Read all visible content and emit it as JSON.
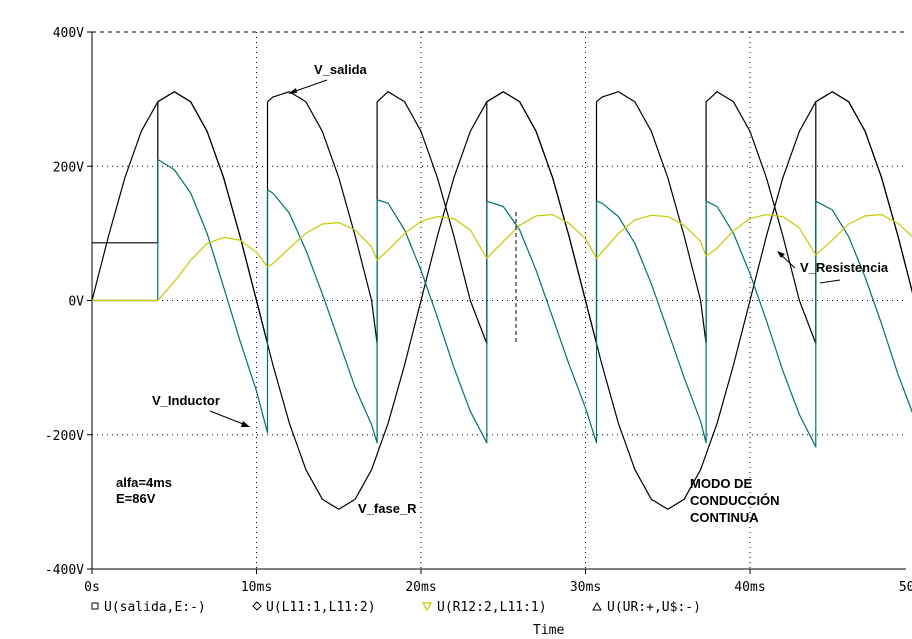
{
  "chart_data": {
    "type": "line",
    "xlabel": "Time",
    "ylabel": "",
    "xlim": [
      0,
      50
    ],
    "ylim": [
      -400,
      400
    ],
    "grid": true,
    "x_ticks": [
      "0s",
      "10ms",
      "20ms",
      "30ms",
      "40ms",
      "50ms"
    ],
    "y_ticks": [
      "400V",
      "200V",
      "0V",
      "-200V",
      "-400V"
    ],
    "legend": {
      "placement": "bottom",
      "entries": [
        {
          "marker": "square",
          "label": "U(salida,E:-)",
          "color": "#000000"
        },
        {
          "marker": "diamond",
          "label": "U(L11:1,L11:2)",
          "color": "#000000"
        },
        {
          "marker": "triangle-down",
          "label": "U(R12:2,L11:1)",
          "color": "#c8c800"
        },
        {
          "marker": "triangle-up",
          "label": "U(UR:+,U$:-)",
          "color": "#000000"
        }
      ]
    },
    "parameters": {
      "alpha_ms": 4,
      "E_volts": 86,
      "period_ms": 20,
      "peak_volts": 311
    },
    "series": [
      {
        "name": "V_fase_R",
        "color": "#000000",
        "x": [
          0,
          1,
          2,
          3,
          4,
          5,
          6,
          7,
          8,
          9,
          10,
          11,
          12,
          13,
          14,
          15,
          16,
          17,
          18,
          19,
          20,
          21,
          22,
          23,
          24,
          25,
          26,
          27,
          28,
          29,
          30,
          31,
          32,
          33,
          34,
          35,
          36,
          37,
          38,
          39,
          40,
          41,
          42,
          43,
          44,
          45,
          46,
          47,
          48,
          49,
          50,
          50.7
        ],
        "y": [
          0,
          96,
          183,
          252,
          296,
          311,
          296,
          252,
          183,
          96,
          0,
          -96,
          -183,
          -252,
          -296,
          -311,
          -296,
          -252,
          -183,
          -96,
          0,
          96,
          183,
          252,
          296,
          311,
          296,
          252,
          183,
          96,
          0,
          -96,
          -183,
          -252,
          -296,
          -311,
          -296,
          -252,
          -183,
          -96,
          0,
          96,
          183,
          252,
          296,
          311,
          296,
          252,
          183,
          96,
          0,
          -68
        ]
      },
      {
        "name": "V_salida",
        "color": "#000000",
        "x": [
          0,
          4,
          4,
          5,
          6,
          7,
          8,
          9,
          10,
          10.67,
          10.67,
          11,
          12,
          13,
          14,
          15,
          16,
          17,
          17.33,
          17.33,
          18,
          19,
          20,
          21,
          22,
          23,
          24,
          24,
          25,
          26,
          27,
          28,
          29,
          30,
          30.67,
          30.67,
          31,
          32,
          33,
          34,
          35,
          36,
          37,
          37.33,
          37.33,
          38,
          39,
          40,
          41,
          42,
          43,
          44,
          44,
          45,
          46,
          47,
          48,
          49,
          50,
          50.7
        ],
        "y": [
          86,
          86,
          296,
          311,
          296,
          252,
          183,
          96,
          0,
          -64,
          296,
          303,
          311,
          296,
          252,
          183,
          96,
          0,
          -64,
          296,
          311,
          296,
          252,
          183,
          96,
          0,
          -64,
          296,
          311,
          296,
          252,
          183,
          96,
          0,
          -64,
          296,
          303,
          311,
          296,
          252,
          183,
          96,
          0,
          -64,
          296,
          311,
          296,
          252,
          183,
          96,
          0,
          -64,
          296,
          311,
          296,
          252,
          183,
          96,
          0,
          -68
        ]
      },
      {
        "name": "V_Inductor",
        "color": "#007070",
        "x": [
          0,
          4,
          4,
          5,
          6,
          7,
          8,
          9,
          10,
          10.67,
          10.67,
          11,
          12,
          13,
          14,
          15,
          16,
          17,
          17.33,
          17.33,
          18,
          19,
          20,
          21,
          22,
          23,
          24,
          24,
          25,
          26,
          27,
          28,
          29,
          30,
          30.67,
          30.67,
          31,
          32,
          33,
          34,
          35,
          36,
          37,
          37.33,
          37.33,
          38,
          39,
          40,
          41,
          42,
          43,
          44,
          44,
          45,
          46,
          47,
          48,
          49,
          50,
          50.7
        ],
        "y": [
          0,
          0,
          210,
          195,
          160,
          100,
          20,
          -60,
          -135,
          -197,
          165,
          160,
          130,
          75,
          10,
          -60,
          -130,
          -185,
          -212,
          150,
          145,
          105,
          45,
          -25,
          -100,
          -165,
          -212,
          148,
          140,
          105,
          45,
          -25,
          -95,
          -160,
          -212,
          148,
          145,
          125,
          85,
          25,
          -45,
          -115,
          -180,
          -212,
          148,
          140,
          100,
          40,
          -30,
          -105,
          -170,
          -218,
          148,
          135,
          95,
          35,
          -35,
          -110,
          -175,
          -218
        ]
      },
      {
        "name": "V_Resistencia",
        "color": "#c8c800",
        "x": [
          0,
          4,
          5,
          6,
          7,
          8,
          9,
          10,
          10.67,
          11,
          12,
          13,
          14,
          15,
          16,
          17,
          17.33,
          18,
          19,
          20,
          21,
          22,
          23,
          24,
          25,
          26,
          27,
          28,
          29,
          30,
          30.67,
          31,
          32,
          33,
          34,
          35,
          36,
          37,
          37.33,
          38,
          39,
          40,
          41,
          42,
          43,
          44,
          45,
          46,
          47,
          48,
          49,
          50,
          50.7
        ],
        "y": [
          0,
          0,
          28,
          60,
          85,
          94,
          90,
          72,
          50,
          55,
          78,
          100,
          114,
          116,
          105,
          80,
          60,
          75,
          100,
          118,
          125,
          122,
          105,
          63,
          88,
          112,
          126,
          128,
          115,
          92,
          63,
          72,
          100,
          120,
          127,
          125,
          112,
          88,
          66,
          78,
          104,
          122,
          128,
          125,
          108,
          68,
          90,
          114,
          126,
          128,
          115,
          92,
          70
        ]
      }
    ],
    "annotations": [
      {
        "text": "V_salida",
        "series": "V_salida"
      },
      {
        "text": "V_Inductor",
        "series": "V_Inductor"
      },
      {
        "text": "V_fase_R",
        "series": "V_fase_R"
      },
      {
        "text": "V_Resistencia",
        "series": "V_Resistencia"
      },
      {
        "text": "alfa=4ms"
      },
      {
        "text": "E=86V"
      },
      {
        "text": "MODO DE"
      },
      {
        "text": "CONDUCCIÓN"
      },
      {
        "text": "CONTINUA"
      }
    ]
  }
}
